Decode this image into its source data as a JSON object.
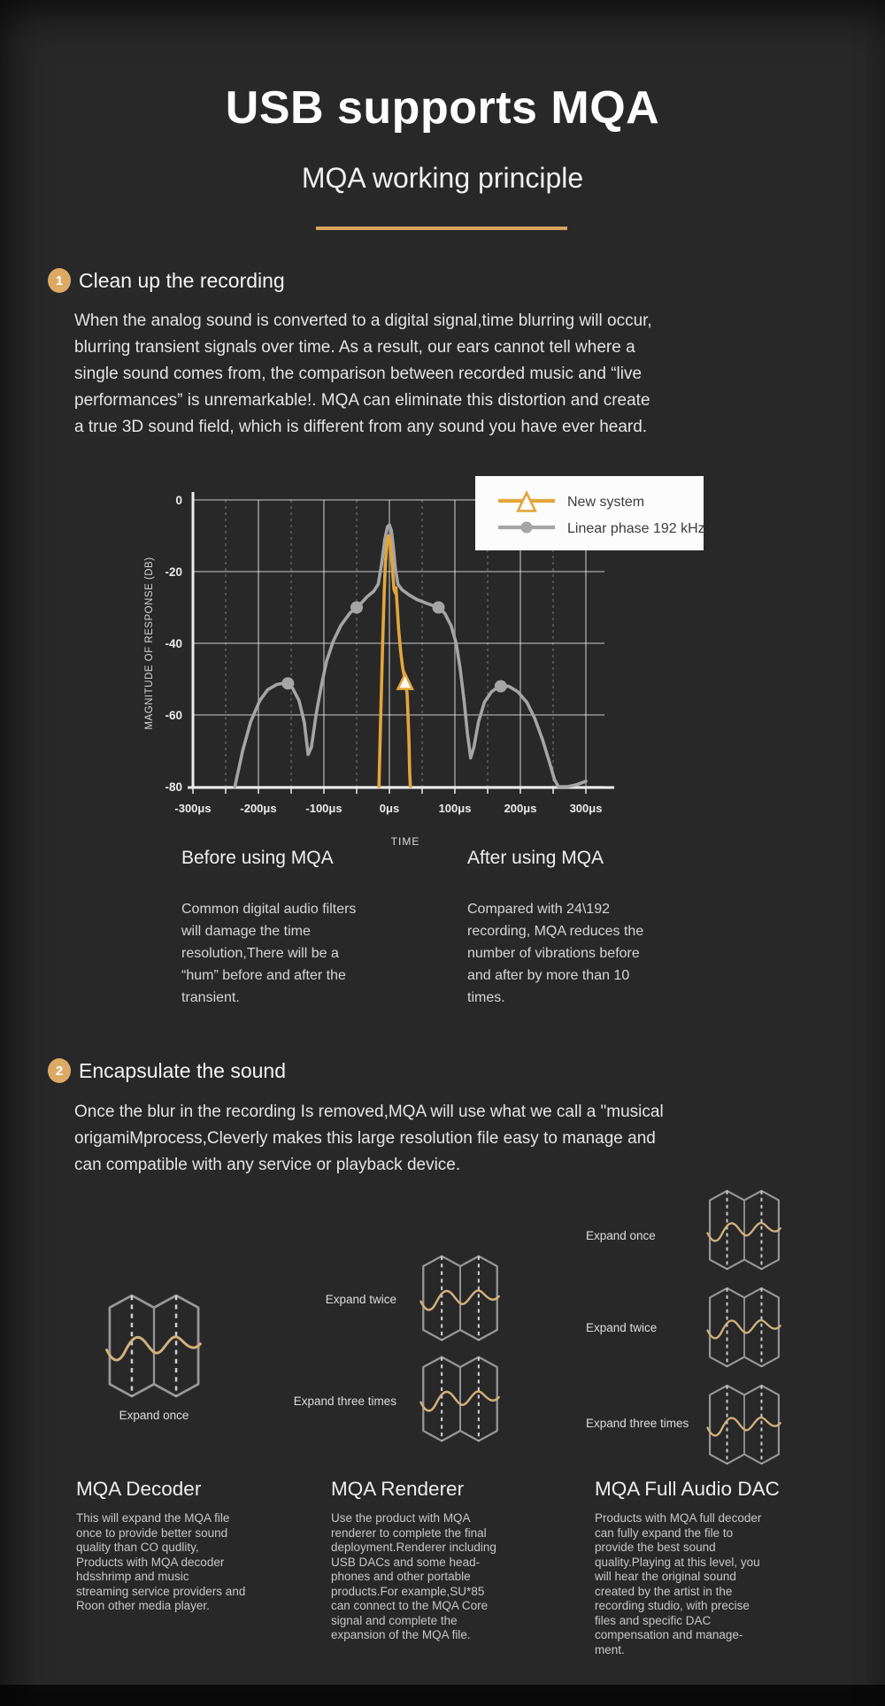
{
  "page": {
    "title": "USB supports MQA",
    "subtitle": "MQA working principle"
  },
  "section1": {
    "number": "1",
    "heading": "Clean up the recording",
    "paragraph": "When the analog sound is converted to a digital signal,time blurring will occur,\nblurring transient signals over time. As a result, our ears cannot tell where a\nsingle sound comes from, the comparison between recorded music and “live\nperformances” is unremarkable!. MQA can eliminate this distortion and create\na true 3D sound field, which is different from any sound you have ever heard."
  },
  "chart_data": {
    "type": "line",
    "xlabel": "TIME",
    "ylabel": "MAGNITUDE OF RESPONSE (DB)",
    "xlim": [
      -300,
      300
    ],
    "ylim": [
      -80,
      0
    ],
    "x_ticks": [
      -300,
      -200,
      -100,
      0,
      100,
      200,
      300
    ],
    "x_tick_labels": [
      "-300μs",
      "-200μs",
      "-100μs",
      "0μs",
      "100μs",
      "200μs",
      "300μs"
    ],
    "y_ticks": [
      0,
      -20,
      -40,
      -60,
      -80
    ],
    "grid": true,
    "legend_position": "top-right",
    "series": [
      {
        "name": "New system",
        "color": "#e2a63c",
        "marker": "triangle",
        "marker_points": [
          [
            24,
            -51
          ]
        ],
        "points": [
          [
            -16,
            -80
          ],
          [
            -14,
            -66
          ],
          [
            -12,
            -52
          ],
          [
            -10,
            -38
          ],
          [
            -8,
            -26
          ],
          [
            -6,
            -17
          ],
          [
            -3,
            -11
          ],
          [
            -1,
            -10
          ],
          [
            1,
            -11.5
          ],
          [
            3,
            -15
          ],
          [
            5,
            -20
          ],
          [
            7,
            -25
          ],
          [
            9,
            -26
          ],
          [
            10,
            -24.5
          ],
          [
            12,
            -30
          ],
          [
            14,
            -36
          ],
          [
            17,
            -42
          ],
          [
            20,
            -46.5
          ],
          [
            24,
            -50.5
          ],
          [
            27,
            -54
          ],
          [
            28,
            -58
          ],
          [
            30,
            -68
          ],
          [
            31,
            -76
          ],
          [
            32,
            -80
          ]
        ]
      },
      {
        "name": "Linear phase 192 kHz",
        "color": "#a5a5a5",
        "marker": "circle",
        "marker_points": [
          [
            -155,
            -51.2
          ],
          [
            -50,
            -30
          ],
          [
            75,
            -30
          ],
          [
            170,
            -52
          ]
        ],
        "points": [
          [
            -236,
            -80
          ],
          [
            -224,
            -70
          ],
          [
            -212,
            -62
          ],
          [
            -198,
            -56
          ],
          [
            -186,
            -53
          ],
          [
            -172,
            -51.5
          ],
          [
            -158,
            -51
          ],
          [
            -148,
            -52.5
          ],
          [
            -138,
            -56
          ],
          [
            -130,
            -62
          ],
          [
            -124,
            -71
          ],
          [
            -119,
            -69
          ],
          [
            -112,
            -60
          ],
          [
            -104,
            -52
          ],
          [
            -96,
            -45
          ],
          [
            -86,
            -39.5
          ],
          [
            -74,
            -35
          ],
          [
            -60,
            -31.5
          ],
          [
            -48,
            -29.8
          ],
          [
            -34,
            -27
          ],
          [
            -24,
            -25.5
          ],
          [
            -17,
            -23.5
          ],
          [
            -12,
            -18
          ],
          [
            -7,
            -11
          ],
          [
            -3,
            -7.5
          ],
          [
            0,
            -7
          ],
          [
            3,
            -8.5
          ],
          [
            6,
            -13
          ],
          [
            9,
            -19
          ],
          [
            13,
            -23.5
          ],
          [
            19,
            -25
          ],
          [
            30,
            -26.5
          ],
          [
            42,
            -27.8
          ],
          [
            56,
            -28.8
          ],
          [
            70,
            -29.7
          ],
          [
            84,
            -31.5
          ],
          [
            94,
            -35
          ],
          [
            102,
            -40
          ],
          [
            108,
            -47
          ],
          [
            114,
            -56
          ],
          [
            119,
            -65
          ],
          [
            124,
            -72
          ],
          [
            129,
            -69
          ],
          [
            136,
            -62
          ],
          [
            145,
            -56.5
          ],
          [
            156,
            -53.5
          ],
          [
            168,
            -52
          ],
          [
            182,
            -52
          ],
          [
            196,
            -53.5
          ],
          [
            210,
            -56.5
          ],
          [
            222,
            -61
          ],
          [
            234,
            -67
          ],
          [
            244,
            -73
          ],
          [
            252,
            -78
          ],
          [
            258,
            -80
          ],
          [
            272,
            -80
          ],
          [
            285,
            -79.5
          ],
          [
            300,
            -78.5
          ]
        ]
      }
    ]
  },
  "comparison": {
    "before": {
      "heading": "Before using MQA",
      "body": "Common digital audio filters\nwill damage the time\nresolution,There will be a\n“hum” before and after the\ntransient."
    },
    "after": {
      "heading": "After using MQA",
      "body": "Compared with 24\\192\nrecording, MQA reduces the\nnumber of vibrations before\nand after by more than 10\ntimes."
    }
  },
  "section2": {
    "number": "2",
    "heading": "Encapsulate the sound",
    "paragraph": "Once the blur in the recording Is removed,MQA will use what we call a \"musical\norigamiMprocess,Cleverly makes this large resolution file easy to manage and\ncan compatible with any service or playback device."
  },
  "products": [
    {
      "heading": "MQA Decoder",
      "expands": [
        "Expand once"
      ],
      "body": "This will expand the MQA file\nonce to provide better sound\nquality than CO qudlity,\nProducts with MQA decoder\nhdsshrimp and music\nstreaming service providers and\nRoon other media player."
    },
    {
      "heading": "MQA Renderer",
      "expands": [
        "Expand twice",
        "Expand three times"
      ],
      "body": "Use the product with MQA\nrenderer to complete the final\ndeployment.Renderer including\nUSB DACs and some head-\nphones and other portable\nproducts.For example,SU*85\ncan connect to the MQA Core\nsignal and complete the\nexpansion of the MQA file."
    },
    {
      "heading": "MQA Full Audio DAC",
      "expands": [
        "Expand once",
        "Expand twice",
        "Expand three times"
      ],
      "body": "Products with MQA full decoder\ncan fully expand the file to\nprovide the best sound\nquality.Playing at this level, you\nwill hear the original sound\ncreated by the artist in the\nrecording studio, with precise\nfiles and specific DAC\ncompensation and manage-\nment."
    }
  ]
}
